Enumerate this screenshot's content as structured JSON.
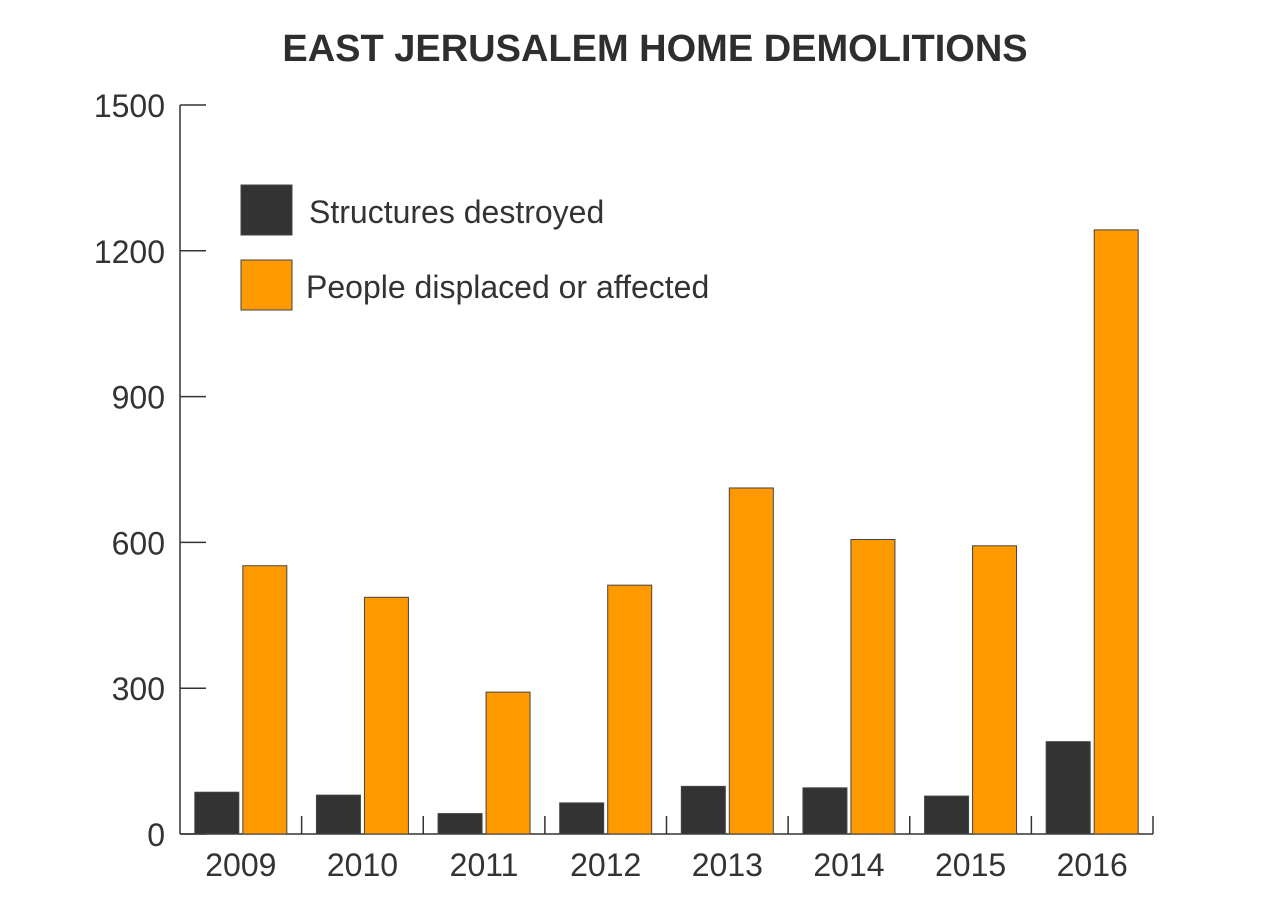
{
  "chart_data": {
    "type": "bar",
    "title": "EAST JERUSALEM HOME DEMOLITIONS",
    "xlabel": "",
    "ylabel": "",
    "categories": [
      "2009",
      "2010",
      "2011",
      "2012",
      "2013",
      "2014",
      "2015",
      "2016"
    ],
    "series": [
      {
        "name": "Structures destroyed",
        "color": "#333333",
        "values": [
          86,
          80,
          42,
          64,
          98,
          95,
          78,
          190
        ]
      },
      {
        "name": "People displaced or affected",
        "color": "#ff9900",
        "values": [
          552,
          487,
          292,
          512,
          712,
          606,
          593,
          1243
        ]
      }
    ],
    "ylim": [
      0,
      1500
    ],
    "yticks": [
      "0",
      "300",
      "600",
      "900",
      "1200",
      "1500"
    ],
    "grid": false,
    "legend_position": "top-left"
  }
}
